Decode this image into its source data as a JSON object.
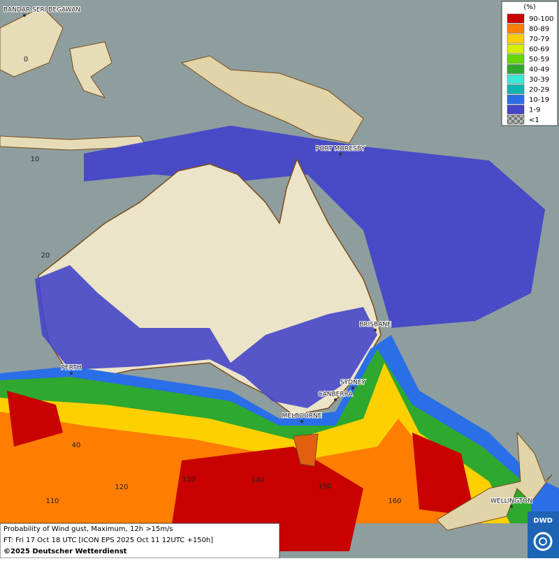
{
  "map": {
    "legend": {
      "title": "(%)",
      "items": [
        {
          "label": "90-100",
          "color": "#c80000"
        },
        {
          "label": "80-89",
          "color": "#ff7d00"
        },
        {
          "label": "70-79",
          "color": "#ffd000"
        },
        {
          "label": "60-69",
          "color": "#d8ee00"
        },
        {
          "label": "50-59",
          "color": "#66d800"
        },
        {
          "label": "40-49",
          "color": "#2ea82e"
        },
        {
          "label": "30-39",
          "color": "#3ee8d8"
        },
        {
          "label": "20-29",
          "color": "#10b4b4"
        },
        {
          "label": "10-19",
          "color": "#2a6ee8"
        },
        {
          "label": "1-9",
          "color": "#4646c8"
        },
        {
          "label": "<1",
          "color": "#b8b8b8"
        }
      ]
    },
    "places": [
      "BANDAR SERI BEGAWAN",
      "PORT MORESBY",
      "BRISBANE",
      "PERTH",
      "SYDNEY",
      "CANBERRA",
      "MELBOURNE",
      "WELLINGTON"
    ],
    "grid_labels": [
      0,
      10,
      20,
      40,
      110,
      120,
      130,
      140,
      150,
      160
    ],
    "caption": {
      "line1": "Probability of Wind gust, Maximum, 12h >15m/s",
      "line2": "FT: Fri 17 Oct 18 UTC [ICON EPS 2025 Oct 11 12UTC +150h]",
      "copyright": "©2025 Deutscher Wetterdienst"
    },
    "logo": "DWD"
  }
}
